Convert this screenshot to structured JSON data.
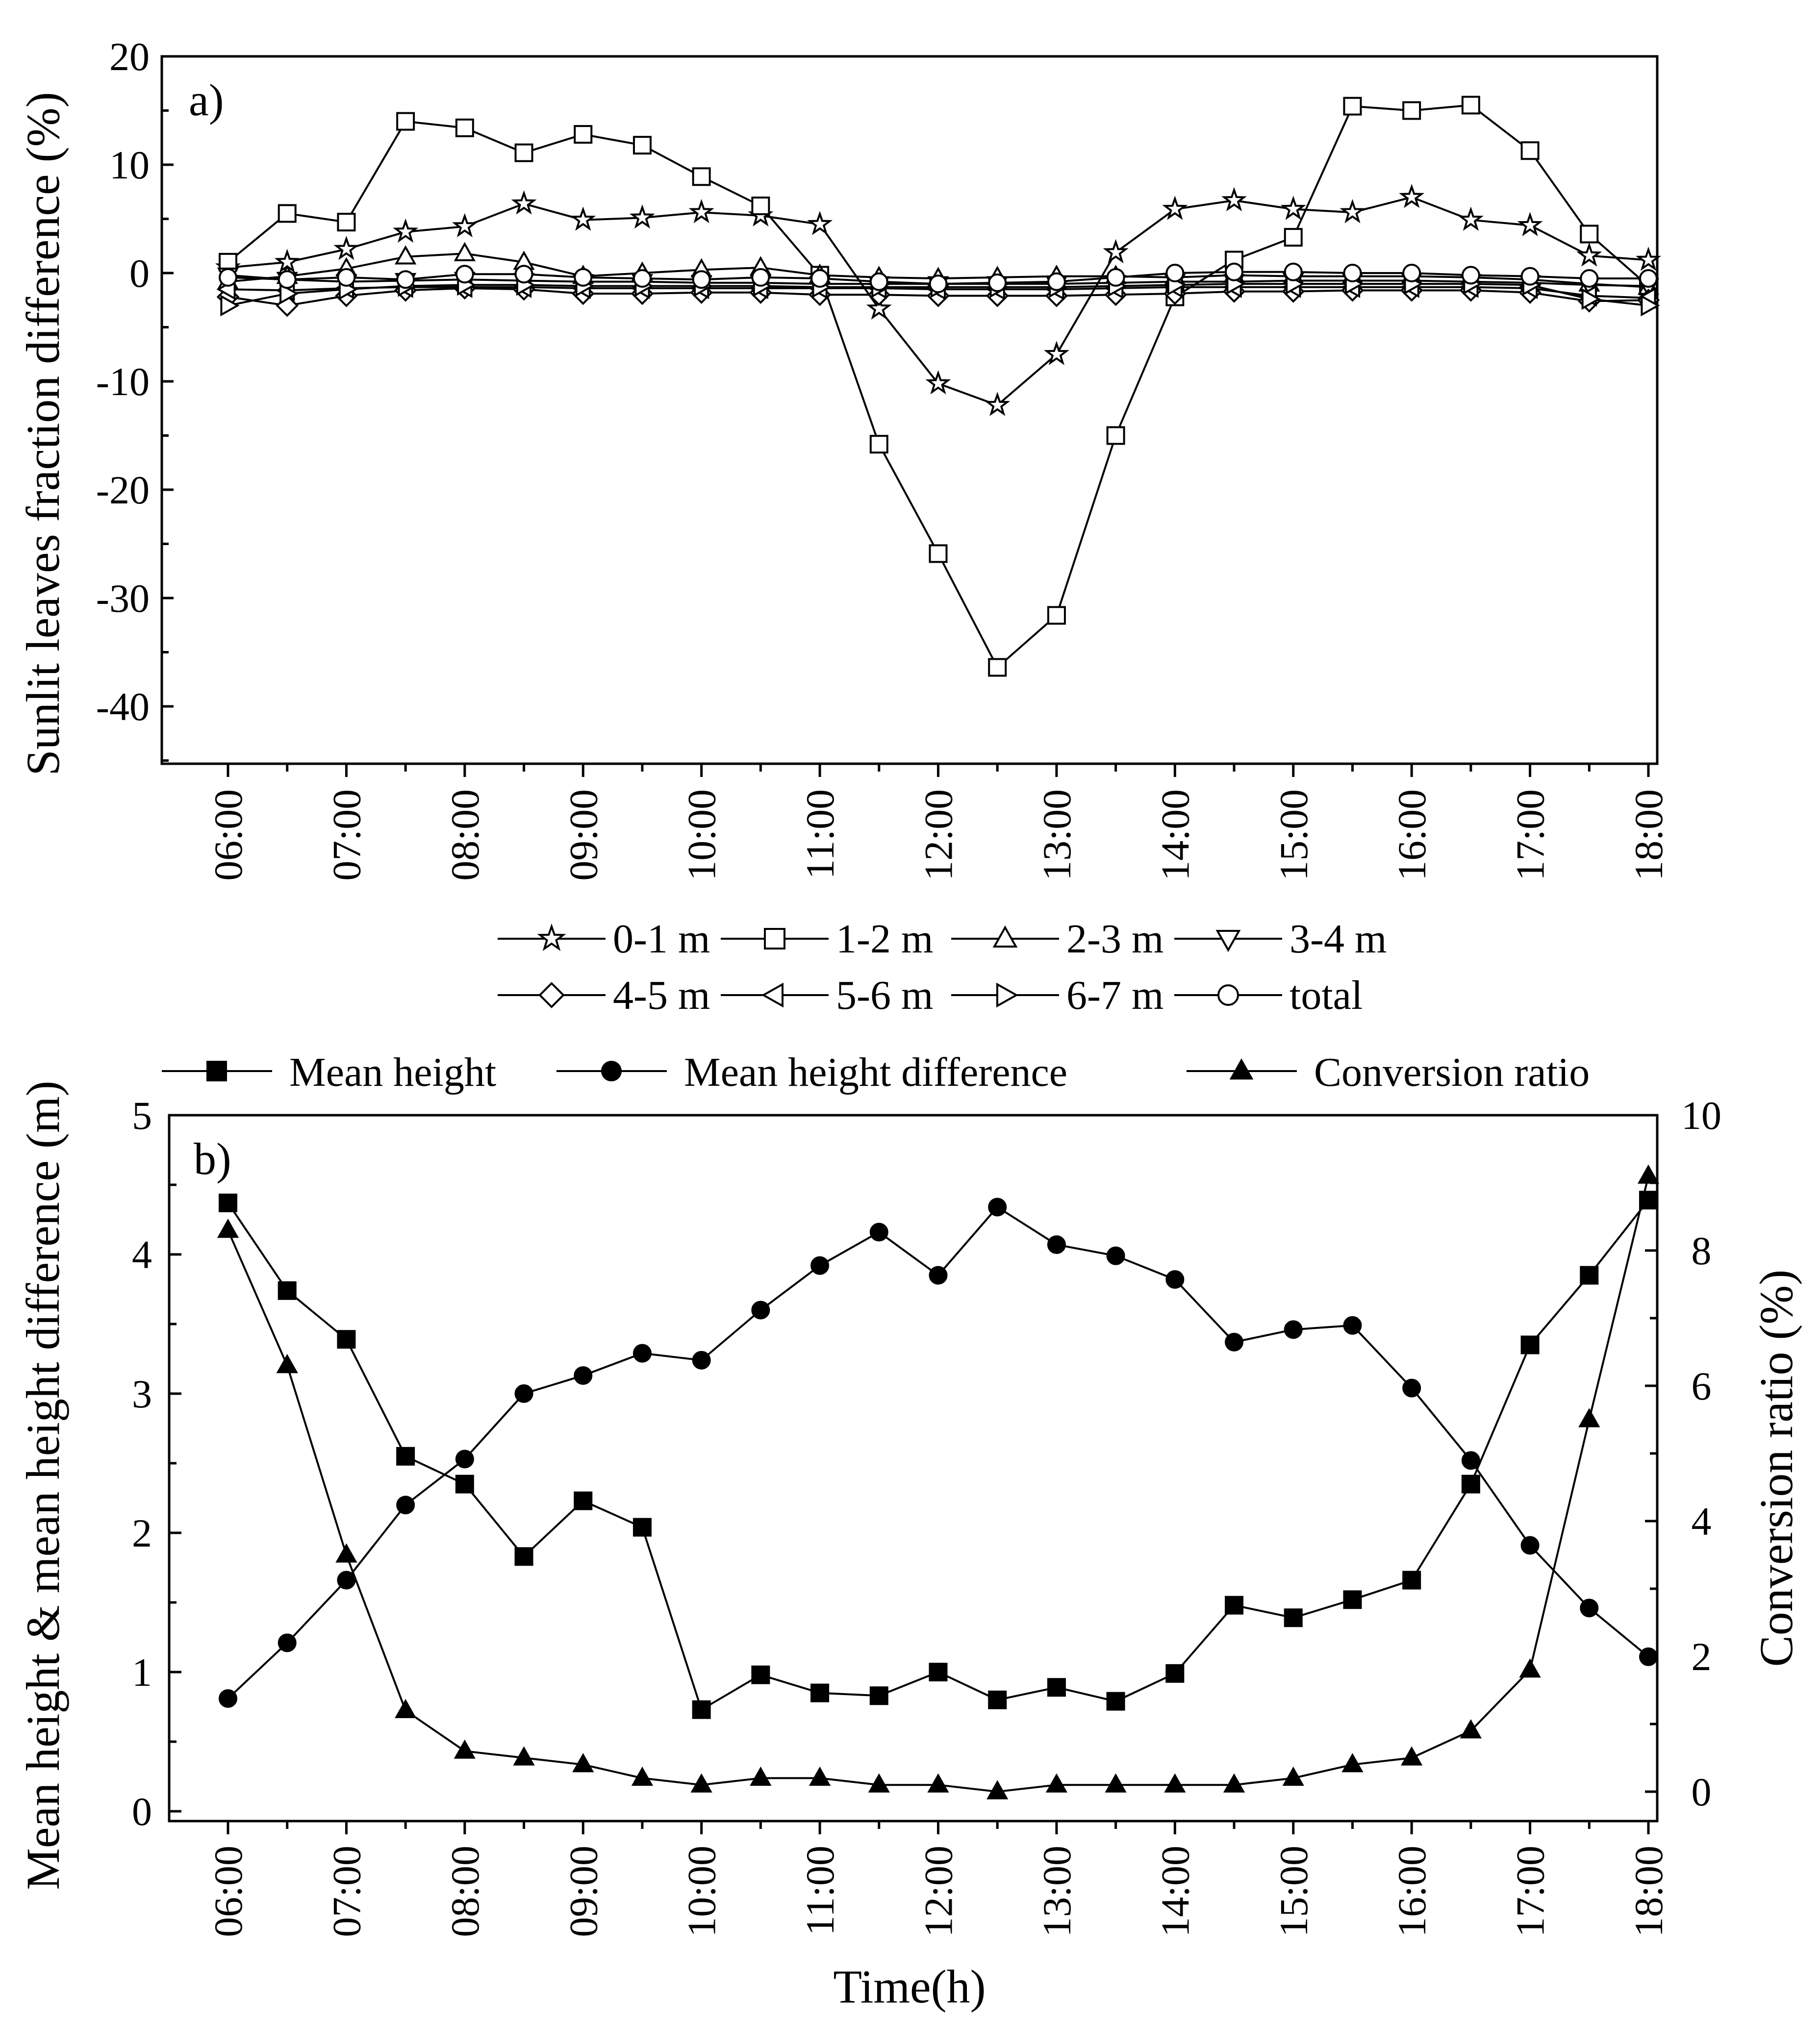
{
  "chart_data": [
    {
      "type": "line",
      "panel": "a)",
      "ylabel": "Sunlit leaves fraction difference (%)",
      "xlabel": "",
      "ylim": [
        -45,
        20
      ],
      "yticks": [
        20,
        10,
        0,
        -10,
        -20,
        -30,
        -40
      ],
      "x_ticks": [
        "06:00",
        "07:00",
        "08:00",
        "09:00",
        "10:00",
        "11:00",
        "12:00",
        "13:00",
        "14:00",
        "15:00",
        "16:00",
        "17:00",
        "18:00"
      ],
      "x": [
        6,
        6.5,
        7,
        7.5,
        8,
        8.5,
        9,
        9.5,
        10,
        10.5,
        11,
        11.5,
        12,
        12.5,
        13,
        13.5,
        14,
        14.5,
        15,
        15.5,
        16,
        16.5,
        17,
        17.5,
        18
      ],
      "legend_columns": 4,
      "series": [
        {
          "name": "0-1 m",
          "marker": "star",
          "values": [
            0.5,
            1.0,
            2.2,
            3.8,
            4.3,
            6.4,
            4.9,
            5.1,
            5.6,
            5.3,
            4.5,
            -3.3,
            -10.2,
            -12.2,
            -7.5,
            1.9,
            5.9,
            6.7,
            5.9,
            5.6,
            7.0,
            4.9,
            4.4,
            1.6,
            1.2
          ]
        },
        {
          "name": "1-2 m",
          "marker": "square",
          "values": [
            1.0,
            5.5,
            4.7,
            14.0,
            13.4,
            11.1,
            12.8,
            11.8,
            8.9,
            6.2,
            -0.2,
            -15.8,
            -25.9,
            -36.4,
            -31.6,
            -15.0,
            -2.2,
            1.2,
            3.3,
            15.4,
            15.0,
            15.5,
            11.3,
            3.6,
            -1.2
          ]
        },
        {
          "name": "2-3 m",
          "marker": "triangle-up",
          "values": [
            -0.8,
            -0.3,
            0.4,
            1.5,
            1.8,
            1.0,
            -0.3,
            0.0,
            0.3,
            0.5,
            -0.2,
            -0.4,
            -0.5,
            -0.4,
            -0.3,
            -0.3,
            -0.4,
            -0.2,
            -0.3,
            -0.3,
            -0.3,
            -0.4,
            -0.6,
            -1.0,
            -1.3
          ]
        },
        {
          "name": "3-4 m",
          "marker": "triangle-down",
          "values": [
            -0.2,
            -0.6,
            -0.8,
            -0.7,
            -0.6,
            -0.7,
            -0.8,
            -0.8,
            -0.9,
            -0.9,
            -1.0,
            -1.0,
            -1.0,
            -1.0,
            -1.0,
            -0.9,
            -0.8,
            -0.8,
            -0.7,
            -0.7,
            -0.7,
            -0.8,
            -0.9,
            -1.1,
            -1.2
          ]
        },
        {
          "name": "4-5 m",
          "marker": "diamond",
          "values": [
            -2.2,
            -3.0,
            -2.1,
            -1.6,
            -1.4,
            -1.5,
            -1.9,
            -1.9,
            -1.8,
            -1.8,
            -2.0,
            -2.0,
            -2.1,
            -2.1,
            -2.1,
            -2.0,
            -1.9,
            -1.7,
            -1.7,
            -1.6,
            -1.6,
            -1.6,
            -1.8,
            -2.6,
            -2.5
          ]
        },
        {
          "name": "5-6 m",
          "marker": "triangle-left",
          "values": [
            -1.5,
            -1.6,
            -1.4,
            -1.3,
            -1.3,
            -1.3,
            -1.4,
            -1.4,
            -1.4,
            -1.4,
            -1.4,
            -1.4,
            -1.5,
            -1.5,
            -1.5,
            -1.4,
            -1.3,
            -1.3,
            -1.3,
            -1.3,
            -1.3,
            -1.3,
            -1.4,
            -2.1,
            -2.3
          ]
        },
        {
          "name": "6-7 m",
          "marker": "triangle-right",
          "values": [
            -3.0,
            -1.9,
            -1.5,
            -1.2,
            -1.1,
            -1.1,
            -1.2,
            -1.2,
            -1.2,
            -1.2,
            -1.3,
            -1.3,
            -1.3,
            -1.3,
            -1.3,
            -1.2,
            -1.1,
            -1.0,
            -1.0,
            -1.0,
            -1.0,
            -1.0,
            -1.1,
            -2.4,
            -3.0
          ]
        },
        {
          "name": "total",
          "marker": "circle",
          "values": [
            -0.4,
            -0.6,
            -0.4,
            -0.6,
            -0.1,
            -0.1,
            -0.4,
            -0.5,
            -0.6,
            -0.4,
            -0.5,
            -0.8,
            -1.0,
            -0.9,
            -0.8,
            -0.4,
            0.0,
            0.1,
            0.1,
            0.0,
            0.0,
            -0.2,
            -0.3,
            -0.5,
            -0.5
          ]
        }
      ]
    },
    {
      "type": "line",
      "panel": "b)",
      "xlabel": "Time(h)",
      "ylabel": "Mean height & mean height difference (m)",
      "ylim": [
        -0.1,
        5
      ],
      "yticks": [
        0,
        1,
        2,
        3,
        4,
        5
      ],
      "y2label": "Conversion ratio (%)",
      "y2lim": [
        -0.4,
        10
      ],
      "y2ticks": [
        0,
        2,
        4,
        6,
        8,
        10
      ],
      "x_ticks": [
        "06:00",
        "07:00",
        "08:00",
        "09:00",
        "10:00",
        "11:00",
        "12:00",
        "13:00",
        "14:00",
        "15:00",
        "16:00",
        "17:00",
        "18:00"
      ],
      "x": [
        6,
        6.5,
        7,
        7.5,
        8,
        8.5,
        9,
        9.5,
        10,
        10.5,
        11,
        11.5,
        12,
        12.5,
        13,
        13.5,
        14,
        14.5,
        15,
        15.5,
        16,
        16.5,
        17,
        17.5,
        18
      ],
      "series": [
        {
          "name": "Mean height",
          "marker": "filled-square",
          "axis": "left",
          "values": [
            4.37,
            3.74,
            3.39,
            2.55,
            2.35,
            1.83,
            2.23,
            2.04,
            0.73,
            0.98,
            0.85,
            0.83,
            1.0,
            0.8,
            0.89,
            0.79,
            0.99,
            1.48,
            1.39,
            1.52,
            1.66,
            2.35,
            3.35,
            3.85,
            4.39
          ]
        },
        {
          "name": "Mean height difference",
          "marker": "filled-circle",
          "axis": "left",
          "values": [
            0.81,
            1.21,
            1.66,
            2.2,
            2.53,
            3.0,
            3.13,
            3.29,
            3.24,
            3.6,
            3.92,
            4.16,
            3.85,
            4.34,
            4.07,
            3.99,
            3.82,
            3.37,
            3.46,
            3.49,
            3.04,
            2.52,
            1.91,
            1.46,
            1.11
          ]
        },
        {
          "name": "Conversion ratio",
          "marker": "filled-triangle",
          "axis": "right",
          "values": [
            8.3,
            6.3,
            3.5,
            1.2,
            0.6,
            0.5,
            0.4,
            0.2,
            0.1,
            0.2,
            0.2,
            0.1,
            0.1,
            0.0,
            0.1,
            0.1,
            0.1,
            0.1,
            0.2,
            0.4,
            0.5,
            0.9,
            1.8,
            5.5,
            9.1
          ]
        }
      ]
    }
  ]
}
